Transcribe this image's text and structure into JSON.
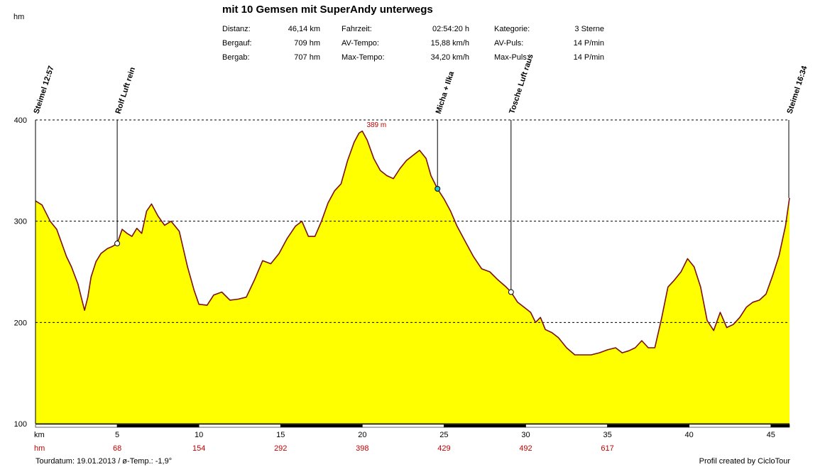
{
  "header": {
    "unit_label": "hm",
    "title": "mit 10 Gemsen mit SuperAndy unterwegs"
  },
  "stats": {
    "col1": [
      {
        "label": "Distanz:",
        "value": "46,14 km"
      },
      {
        "label": "Bergauf:",
        "value": "709 hm"
      },
      {
        "label": "Bergab:",
        "value": "707 hm"
      }
    ],
    "col2": [
      {
        "label": "Fahrzeit:",
        "value": "02:54:20 h"
      },
      {
        "label": "AV-Tempo:",
        "value": "15,88 km/h"
      },
      {
        "label": "Max-Tempo:",
        "value": "34,20 km/h"
      }
    ],
    "col3": [
      {
        "label": "Kategorie:",
        "value": "3 Sterne"
      },
      {
        "label": "AV-Puls:",
        "value": "14 P/min"
      },
      {
        "label": "Max-Puls:",
        "value": "14 P/min"
      }
    ]
  },
  "footer": {
    "left": "Tourdatum: 19.01.2013  /  ø-Temp.: -1,9°",
    "right": "Profil created by CicloTour"
  },
  "colors": {
    "fill": "#ffff00",
    "line": "#7b1010",
    "grid": "#000000",
    "red_text": "#c00000"
  },
  "chart_data": {
    "type": "area",
    "xlabel": "km",
    "ylabel": "hm",
    "xlim": [
      0,
      46.14
    ],
    "ylim": [
      100,
      400
    ],
    "y_ticks": [
      100,
      200,
      300,
      400
    ],
    "x_ticks": [
      5,
      10,
      15,
      20,
      25,
      30,
      35,
      40,
      45
    ],
    "x_tick_labels": [
      "5",
      "10",
      "15",
      "20",
      "25",
      "30",
      "35",
      "40",
      "45"
    ],
    "hm_row_label": "hm",
    "hm_row": [
      {
        "km": 5,
        "label": "68"
      },
      {
        "km": 10,
        "label": "154"
      },
      {
        "km": 15,
        "label": "292"
      },
      {
        "km": 20,
        "label": "398"
      },
      {
        "km": 25,
        "label": "429"
      },
      {
        "km": 30,
        "label": "492"
      },
      {
        "km": 35,
        "label": "617"
      }
    ],
    "max_label": {
      "km": 20.0,
      "text": "389 m"
    },
    "grid": "dashed horizontal",
    "waypoints": [
      {
        "km": 0.0,
        "label": "Steimel 12:57"
      },
      {
        "km": 5.0,
        "label": "Rolf Luft rein"
      },
      {
        "km": 24.6,
        "label": "Micha + Ilka"
      },
      {
        "km": 29.1,
        "label": "Tosche Luft raus"
      },
      {
        "km": 46.14,
        "label": "Steimel 16:34"
      }
    ],
    "series": [
      {
        "x": [
          0.0,
          0.4,
          0.9,
          1.3,
          1.9,
          2.2,
          2.6,
          2.8,
          3.0,
          3.2,
          3.4,
          3.7,
          4.0,
          4.4,
          4.7,
          5.0,
          5.3,
          5.6,
          5.9,
          6.2,
          6.5,
          6.8,
          7.1,
          7.5,
          7.9,
          8.3,
          8.8,
          9.3,
          9.7,
          10.0,
          10.5,
          10.9,
          11.4,
          11.9,
          12.4,
          12.9,
          13.4,
          13.9,
          14.4,
          14.9,
          15.4,
          15.9,
          16.3,
          16.7,
          17.1,
          17.5,
          17.9,
          18.3,
          18.7,
          19.1,
          19.5,
          19.8,
          20.0,
          20.3,
          20.7,
          21.1,
          21.5,
          21.9,
          22.3,
          22.7,
          23.1,
          23.5,
          23.9,
          24.2,
          24.6,
          25.0,
          25.4,
          25.8,
          26.3,
          26.8,
          27.3,
          27.8,
          28.3,
          28.8,
          29.1,
          29.5,
          29.9,
          30.3,
          30.6,
          30.9,
          31.2,
          31.6,
          32.0,
          32.5,
          33.0,
          33.5,
          34.0,
          34.5,
          35.0,
          35.5,
          35.9,
          36.3,
          36.7,
          37.1,
          37.5,
          37.9,
          38.3,
          38.7,
          39.1,
          39.5,
          39.9,
          40.3,
          40.7,
          41.1,
          41.5,
          41.9,
          42.3,
          42.7,
          43.1,
          43.5,
          43.9,
          44.3,
          44.7,
          45.1,
          45.5,
          45.9,
          46.14
        ],
        "y": [
          320,
          316,
          300,
          292,
          265,
          255,
          238,
          225,
          212,
          225,
          245,
          260,
          268,
          273,
          275,
          278,
          292,
          288,
          285,
          293,
          288,
          310,
          317,
          305,
          296,
          300,
          290,
          255,
          232,
          218,
          217,
          227,
          230,
          222,
          223,
          225,
          242,
          261,
          258,
          268,
          283,
          295,
          300,
          285,
          285,
          300,
          318,
          330,
          337,
          360,
          378,
          387,
          389,
          380,
          362,
          350,
          345,
          342,
          352,
          360,
          365,
          370,
          362,
          345,
          332,
          322,
          310,
          295,
          280,
          265,
          253,
          250,
          242,
          235,
          230,
          220,
          215,
          210,
          200,
          205,
          193,
          190,
          185,
          175,
          168,
          168,
          168,
          170,
          173,
          175,
          170,
          172,
          175,
          182,
          175,
          175,
          203,
          235,
          242,
          250,
          263,
          255,
          235,
          202,
          192,
          210,
          195,
          198,
          205,
          215,
          220,
          222,
          228,
          246,
          266,
          296,
          323
        ]
      }
    ]
  }
}
